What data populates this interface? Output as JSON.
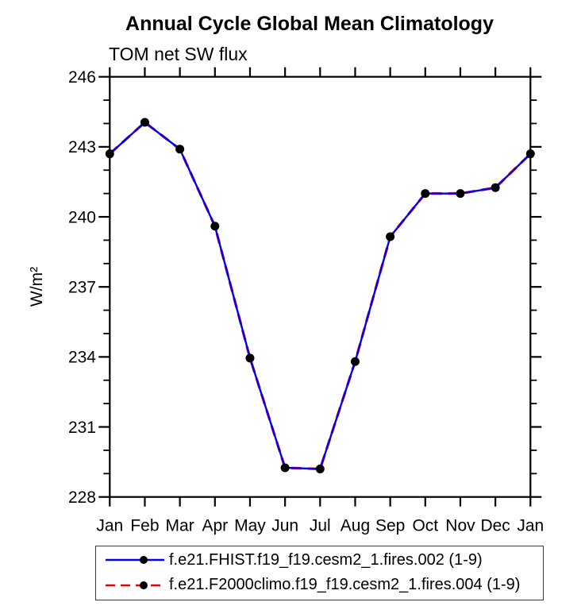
{
  "chart_data": {
    "type": "line",
    "title": "Annual Cycle Global Mean Climatology",
    "subtitle": "TOM net SW flux",
    "ylabel": "W/m²",
    "xlabel": "",
    "categories": [
      "Jan",
      "Feb",
      "Mar",
      "Apr",
      "May",
      "Jun",
      "Jul",
      "Aug",
      "Sep",
      "Oct",
      "Nov",
      "Dec",
      "Jan"
    ],
    "ylim": [
      228,
      246
    ],
    "yticks": [
      228,
      231,
      234,
      237,
      240,
      243,
      246
    ],
    "ytick_minor_step": 1,
    "grid": false,
    "legend_position": "bottom",
    "frame_color": "#000000",
    "marker_color": "#000000",
    "series": [
      {
        "name": "f.e21.FHIST.f19_f19.cesm2_1.fires.002 (1-9)",
        "color": "#0000ee",
        "style": "solid",
        "marker": "circle",
        "values": [
          242.7,
          244.05,
          242.9,
          239.6,
          233.95,
          229.25,
          229.2,
          233.8,
          239.15,
          241.0,
          241.0,
          241.25,
          242.7
        ]
      },
      {
        "name": "f.e21.F2000climo.f19_f19.cesm2_1.fires.004 (1-9)",
        "color": "#ee0000",
        "style": "dashed",
        "marker": "circle",
        "values": [
          242.7,
          244.05,
          242.9,
          239.6,
          233.95,
          229.25,
          229.2,
          233.8,
          239.15,
          241.0,
          241.0,
          241.25,
          242.7
        ]
      }
    ]
  }
}
